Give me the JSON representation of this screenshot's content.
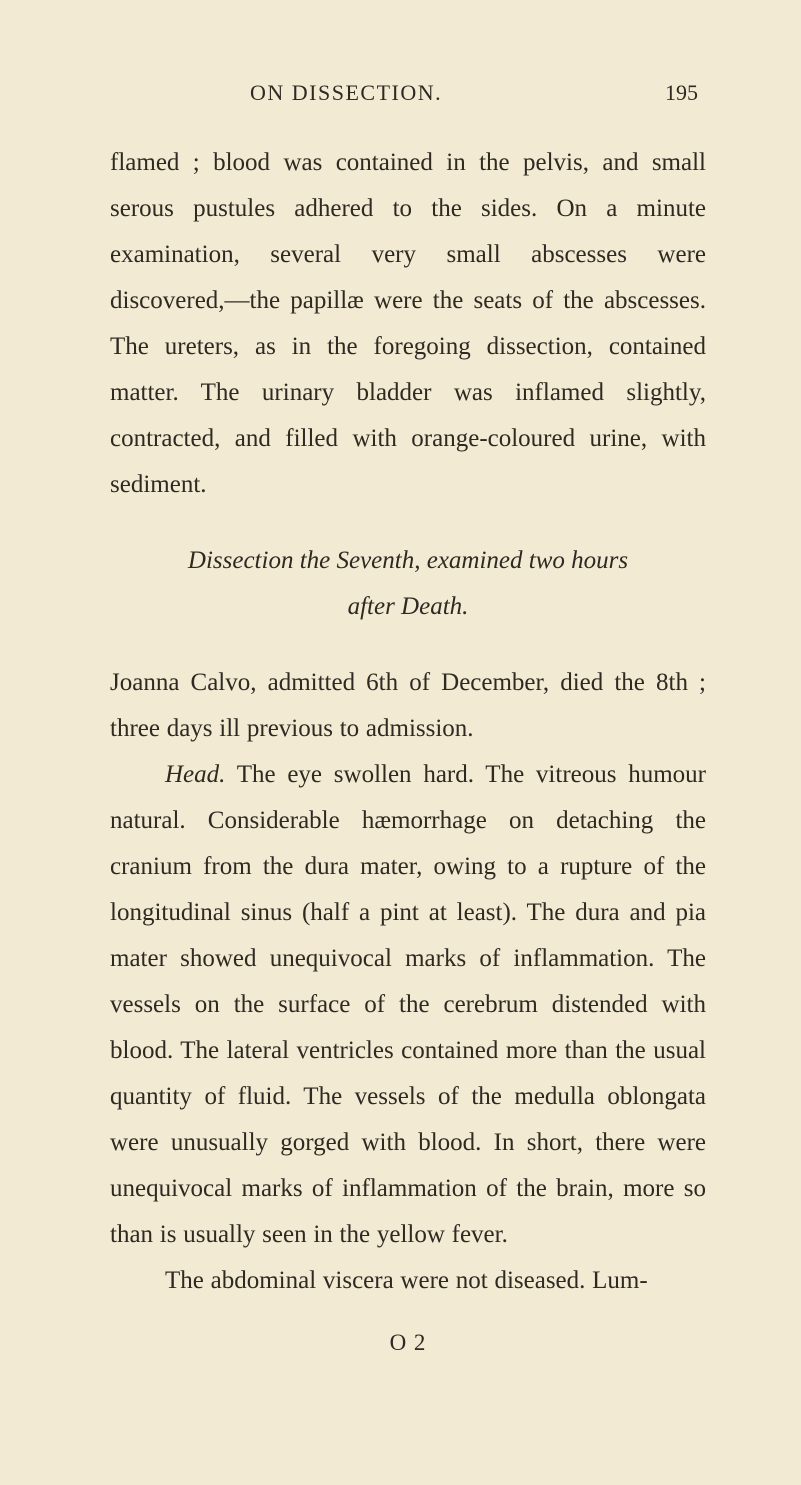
{
  "page": {
    "background_color": "#f3ead4",
    "text_color": "#2e2a22",
    "body_fontsize": 25,
    "body_lineheight": 46,
    "header_fontsize": 22,
    "title_fontsize": 25,
    "sig_fontsize": 23
  },
  "header": {
    "running_head": "ON DISSECTION.",
    "page_number": "195"
  },
  "para1": "flamed ; blood was contained in the pelvis, and small serous pustules adhered to the sides. On a minute examination, several very small abscesses were discovered,—the papillæ were the seats of the abscesses. The ureters, as in the foregoing dissection, contained matter. The urinary bladder was inflamed slightly, contracted, and filled with orange-coloured urine, with sediment.",
  "section_title": {
    "line1": "Dissection the Seventh, examined two hours",
    "line2": "after Death."
  },
  "para2": "Joanna Calvo, admitted 6th of December, died the 8th ; three days ill previous to admission.",
  "para3_lead": "Head.",
  "para3_rest": " The eye swollen hard. The vitreous humour natural. Considerable hæmorrhage on detaching the cranium from the dura mater, owing to a rupture of the longitudinal sinus (half a pint at least). The dura and pia mater showed unequivocal marks of inflammation. The vessels on the surface of the cerebrum distended with blood. The lateral ventricles contained more than the usual quantity of fluid. The vessels of the medulla oblongata were unusually gorged with blood. In short, there were unequivocal marks of inflammation of the brain, more so than is usually seen in the yellow fever.",
  "para4": "The abdominal viscera were not diseased. Lum-",
  "signature": "O 2"
}
